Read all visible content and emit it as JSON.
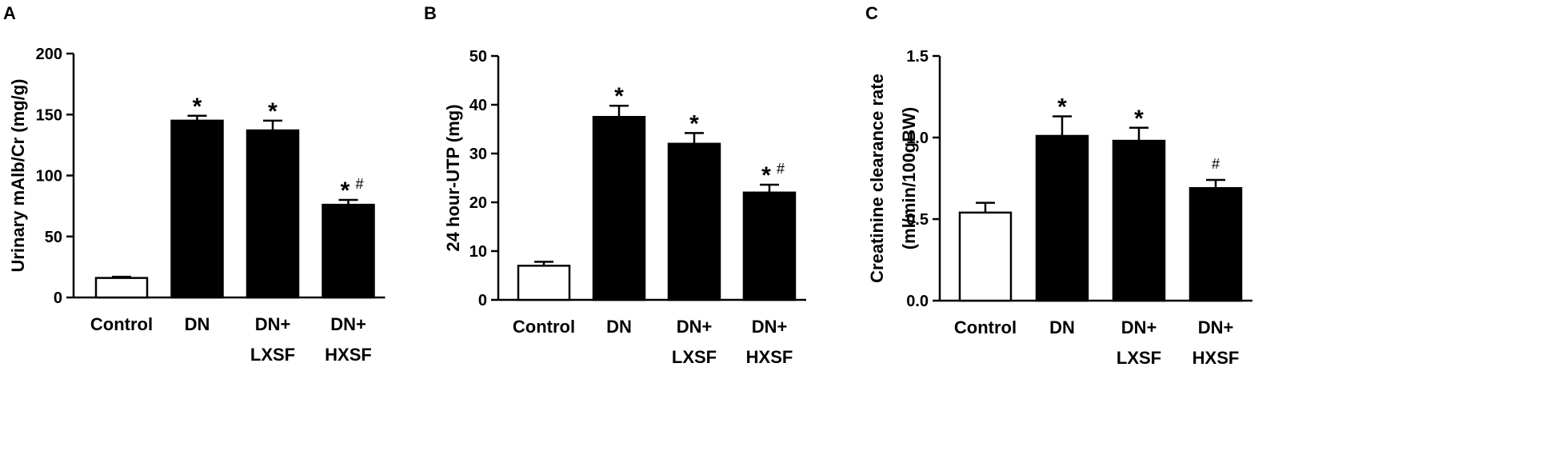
{
  "chart_data": [
    {
      "panel": "A",
      "type": "bar",
      "categories": [
        [
          "Control"
        ],
        [
          "DN"
        ],
        [
          "DN+",
          "LXSF"
        ],
        [
          "DN+",
          "HXSF"
        ]
      ],
      "values": [
        16,
        145,
        137,
        76
      ],
      "errors": [
        1,
        4,
        8,
        4
      ],
      "annotations": [
        "",
        "*",
        "*",
        "*#"
      ],
      "bar_fills": [
        "#ffffff",
        "#000000",
        "#000000",
        "#000000"
      ],
      "ylabel": [
        "Urinary mAlb/Cr (mg/g)"
      ],
      "ylim": [
        0,
        200
      ],
      "yticks": [
        0,
        50,
        100,
        150,
        200
      ],
      "ytick_labels": [
        "0",
        "50",
        "100",
        "150",
        "200"
      ]
    },
    {
      "panel": "B",
      "type": "bar",
      "categories": [
        [
          "Control"
        ],
        [
          "DN"
        ],
        [
          "DN+",
          "LXSF"
        ],
        [
          "DN+",
          "HXSF"
        ]
      ],
      "values": [
        7,
        37.5,
        32,
        22
      ],
      "errors": [
        0.8,
        2.3,
        2.2,
        1.6
      ],
      "annotations": [
        "",
        "*",
        "*",
        "*#"
      ],
      "bar_fills": [
        "#ffffff",
        "#000000",
        "#000000",
        "#000000"
      ],
      "ylabel": [
        "24 hour-UTP (mg)"
      ],
      "ylim": [
        0,
        50
      ],
      "yticks": [
        0,
        10,
        20,
        30,
        40,
        50
      ],
      "ytick_labels": [
        "0",
        "10",
        "20",
        "30",
        "40",
        "50"
      ]
    },
    {
      "panel": "C",
      "type": "bar",
      "categories": [
        [
          "Control"
        ],
        [
          "DN"
        ],
        [
          "DN+",
          "LXSF"
        ],
        [
          "DN+",
          "HXSF"
        ]
      ],
      "values": [
        0.54,
        1.01,
        0.98,
        0.69
      ],
      "errors": [
        0.06,
        0.12,
        0.08,
        0.05
      ],
      "annotations": [
        "",
        "*",
        "*",
        "#"
      ],
      "bar_fills": [
        "#ffffff",
        "#000000",
        "#000000",
        "#000000"
      ],
      "ylabel": [
        "Creatinine clearance rate",
        "(ml/min/100gBW)"
      ],
      "ylim": [
        0,
        1.5
      ],
      "yticks": [
        0,
        0.5,
        1.0,
        1.5
      ],
      "ytick_labels": [
        "0.0",
        "0.5",
        "1.0",
        "1.5"
      ]
    }
  ]
}
